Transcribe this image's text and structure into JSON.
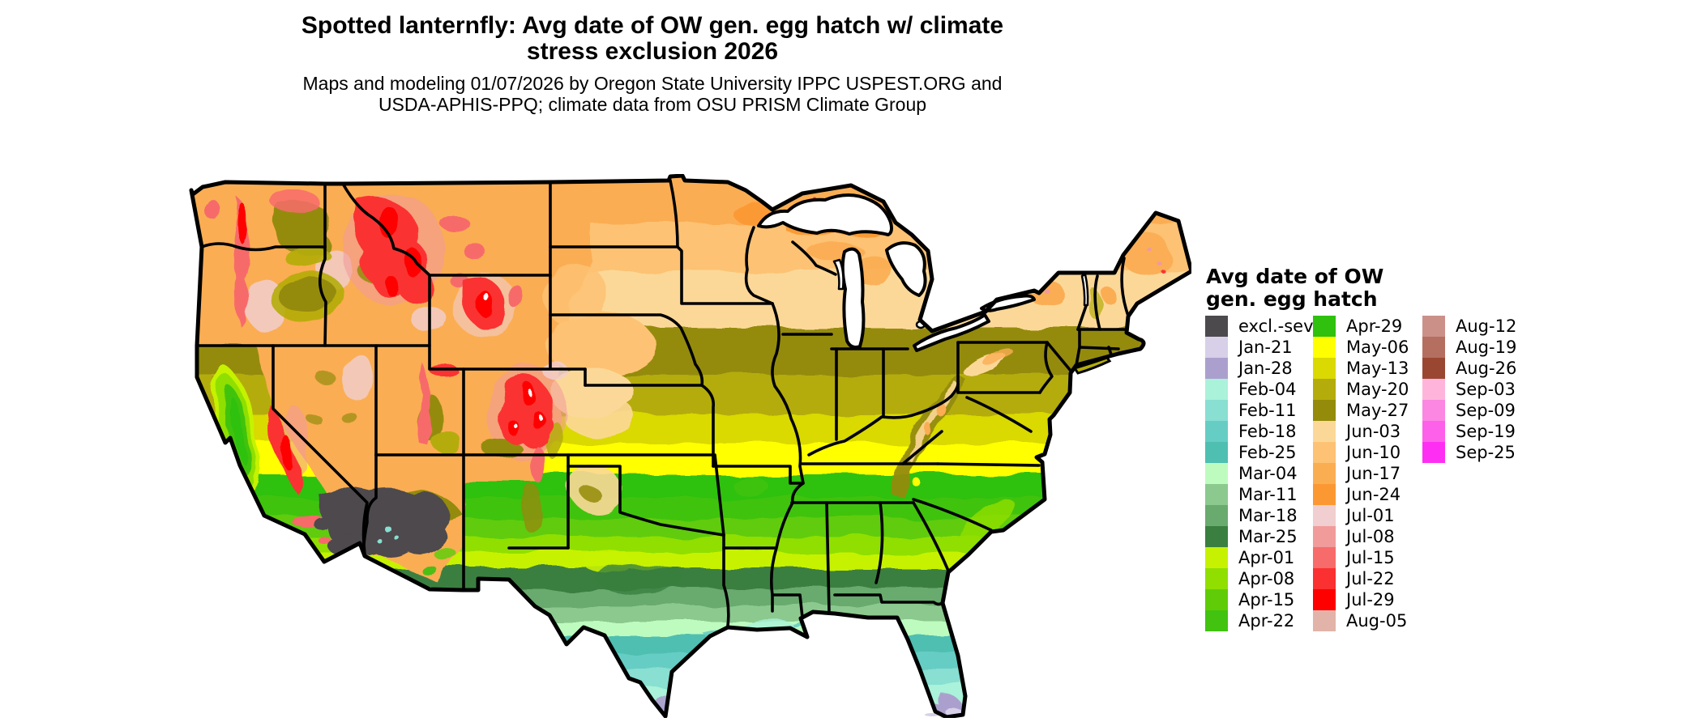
{
  "title": {
    "line1": "Spotted lanternfly: Avg date of OW gen. egg hatch w/ climate",
    "line2": "stress exclusion 2026"
  },
  "subtitle": {
    "line1": "Maps and modeling 01/07/2026 by Oregon State University IPPC USPEST.ORG and",
    "line2": "USDA-APHIS-PPQ; climate data from OSU PRISM Climate Group"
  },
  "map": {
    "kind": "choropleth raster map",
    "region": "Contiguous United States"
  },
  "legend": {
    "title_line1": "Avg date of OW",
    "title_line2": "gen. egg hatch",
    "columns": [
      [
        {
          "label": "excl.-sev.",
          "color": "#4D4A4D"
        },
        {
          "label": "Jan-21",
          "color": "#D7D0E8"
        },
        {
          "label": "Jan-28",
          "color": "#ABA0CD"
        },
        {
          "label": "Feb-04",
          "color": "#AAF2DA"
        },
        {
          "label": "Feb-11",
          "color": "#88DFD2"
        },
        {
          "label": "Feb-18",
          "color": "#66CDC4"
        },
        {
          "label": "Feb-25",
          "color": "#4FBFB1"
        },
        {
          "label": "Mar-04",
          "color": "#BEFBBF"
        },
        {
          "label": "Mar-11",
          "color": "#8CC98F"
        },
        {
          "label": "Mar-18",
          "color": "#69AA6E"
        },
        {
          "label": "Mar-25",
          "color": "#3A7F3F"
        },
        {
          "label": "Apr-01",
          "color": "#C6F201"
        },
        {
          "label": "Apr-08",
          "color": "#90DF00"
        },
        {
          "label": "Apr-15",
          "color": "#60CC07"
        },
        {
          "label": "Apr-22",
          "color": "#41C310"
        }
      ],
      [
        {
          "label": "Apr-29",
          "color": "#2FC10D"
        },
        {
          "label": "May-06",
          "color": "#FFFF00"
        },
        {
          "label": "May-13",
          "color": "#DAD902"
        },
        {
          "label": "May-20",
          "color": "#B4AC0A"
        },
        {
          "label": "May-27",
          "color": "#948B0B"
        },
        {
          "label": "Jun-03",
          "color": "#FCD898"
        },
        {
          "label": "Jun-10",
          "color": "#FDC273"
        },
        {
          "label": "Jun-17",
          "color": "#FBAD52"
        },
        {
          "label": "Jun-24",
          "color": "#FB9832"
        },
        {
          "label": "Jul-01",
          "color": "#F1CECF"
        },
        {
          "label": "Jul-08",
          "color": "#F19B9B"
        },
        {
          "label": "Jul-15",
          "color": "#F76B6B"
        },
        {
          "label": "Jul-22",
          "color": "#FB3030"
        },
        {
          "label": "Jul-29",
          "color": "#FE0000"
        },
        {
          "label": "Aug-05",
          "color": "#E2B3A9"
        }
      ],
      [
        {
          "label": "Aug-12",
          "color": "#CB9189"
        },
        {
          "label": "Aug-19",
          "color": "#B46F60"
        },
        {
          "label": "Aug-26",
          "color": "#9A4732"
        },
        {
          "label": "Sep-03",
          "color": "#FFB5DB"
        },
        {
          "label": "Sep-09",
          "color": "#FB87E2"
        },
        {
          "label": "Sep-19",
          "color": "#FD60E9"
        },
        {
          "label": "Sep-25",
          "color": "#FE2FF2"
        }
      ]
    ]
  }
}
